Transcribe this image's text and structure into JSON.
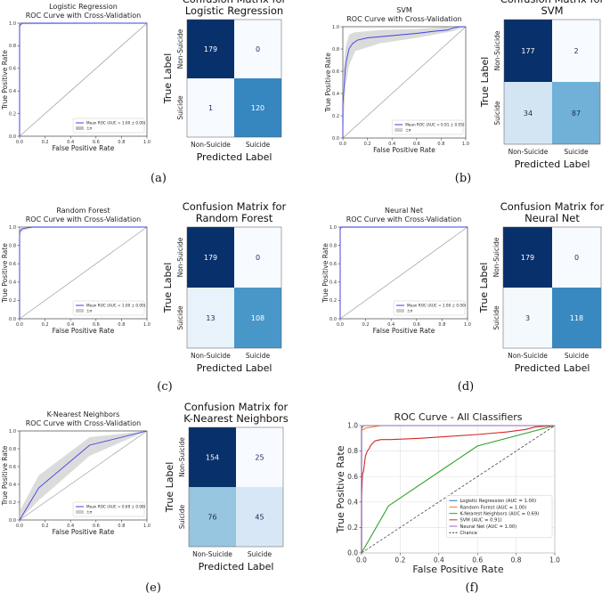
{
  "panel_labels": [
    "(a)",
    "(b)",
    "(c)",
    "(d)",
    "(e)",
    "(f)"
  ],
  "chart_data": [
    {
      "type": "line",
      "id": "roc_lr",
      "title": "Logistic Regression\nROC Curve with Cross-Validation",
      "xlabel": "False Positive Rate",
      "ylabel": "True Positive Rate",
      "xlim": [
        0,
        1
      ],
      "ylim": [
        0,
        1
      ],
      "xticks": [
        "0.0",
        "0.2",
        "0.4",
        "0.6",
        "0.8",
        "1.0"
      ],
      "yticks": [
        "0.0",
        "0.2",
        "0.4",
        "0.6",
        "0.8",
        "1.0"
      ],
      "series": [
        {
          "name": "Mean ROC (AUC = 1.00 ± 0.00)",
          "color": "#4040e0",
          "x": [
            0,
            0.0,
            0.02,
            1.0
          ],
          "y": [
            0,
            0.98,
            1.0,
            1.0
          ]
        }
      ],
      "band": {
        "name": "±σ",
        "color": "#bfbfbf",
        "x": [
          0,
          0.02,
          1.0
        ],
        "lower": [
          0.96,
          0.99,
          1.0
        ],
        "upper": [
          1.0,
          1.0,
          1.0
        ]
      },
      "legend": [
        "Mean ROC (AUC = 1.00 ± 0.00)",
        "±σ"
      ]
    },
    {
      "type": "heatmap",
      "id": "cm_lr",
      "title": "Confusion Matrix for\nLogistic Regression",
      "xlabel": "Predicted Label",
      "ylabel": "True Label",
      "labels": [
        "Non-Suicide",
        "Suicide"
      ],
      "matrix": [
        [
          179,
          0
        ],
        [
          1,
          120
        ]
      ]
    },
    {
      "type": "line",
      "id": "roc_svm",
      "title": "SVM\nROC Curve with Cross-Validation",
      "xlabel": "False Positive Rate",
      "ylabel": "True Positive Rate",
      "xlim": [
        0,
        1
      ],
      "ylim": [
        0,
        1
      ],
      "xticks": [
        "0.0",
        "0.2",
        "0.4",
        "0.6",
        "0.8",
        "1.0"
      ],
      "yticks": [
        "0.0",
        "0.2",
        "0.4",
        "0.6",
        "0.8",
        "1.0"
      ],
      "series": [
        {
          "name": "Mean ROC (AUC = 0.91 ± 0.05)",
          "color": "#4040e0",
          "x": [
            0,
            0.0,
            0.02,
            0.03,
            0.05,
            0.08,
            0.12,
            0.2,
            0.4,
            0.6,
            0.75,
            0.85,
            0.9,
            0.95,
            1.0
          ],
          "y": [
            0,
            0.3,
            0.62,
            0.7,
            0.8,
            0.85,
            0.88,
            0.9,
            0.92,
            0.94,
            0.96,
            0.97,
            0.99,
            1.0,
            1.0
          ]
        }
      ],
      "band": {
        "name": "±σ",
        "color": "#cccccc",
        "x": [
          0,
          0.02,
          0.05,
          0.1,
          0.3,
          0.6,
          0.9,
          1.0
        ],
        "lower": [
          0.0,
          0.45,
          0.65,
          0.78,
          0.85,
          0.9,
          0.96,
          1.0
        ],
        "upper": [
          0.55,
          0.8,
          0.93,
          0.95,
          0.97,
          0.98,
          1.0,
          1.0
        ]
      },
      "legend": [
        "Mean ROC (AUC = 0.91 ± 0.05)",
        "±σ"
      ]
    },
    {
      "type": "heatmap",
      "id": "cm_svm",
      "title": "Confusion Matrix for\nSVM",
      "xlabel": "Predicted Label",
      "ylabel": "True Label",
      "labels": [
        "Non-Suicide",
        "Suicide"
      ],
      "matrix": [
        [
          177,
          2
        ],
        [
          34,
          87
        ]
      ]
    },
    {
      "type": "line",
      "id": "roc_rf",
      "title": "Random Forest\nROC Curve with Cross-Validation",
      "xlabel": "False Positive Rate",
      "ylabel": "True Positive Rate",
      "xlim": [
        0,
        1
      ],
      "ylim": [
        0,
        1
      ],
      "xticks": [
        "0.0",
        "0.2",
        "0.4",
        "0.6",
        "0.8",
        "1.0"
      ],
      "yticks": [
        "0.0",
        "0.2",
        "0.4",
        "0.6",
        "0.8",
        "1.0"
      ],
      "series": [
        {
          "name": "Mean ROC (AUC = 1.00 ± 0.00)",
          "color": "#4040e0",
          "x": [
            0,
            0.0,
            0.02,
            0.05,
            0.1,
            1.0
          ],
          "y": [
            0,
            0.95,
            0.98,
            0.99,
            1.0,
            1.0
          ]
        }
      ],
      "band": {
        "name": "±σ",
        "color": "#cccccc",
        "x": [
          0,
          0.02,
          0.1,
          1.0
        ],
        "lower": [
          0.9,
          0.96,
          0.99,
          1.0
        ],
        "upper": [
          1.0,
          1.0,
          1.0,
          1.0
        ]
      },
      "legend": [
        "Mean ROC (AUC = 1.00 ± 0.00)",
        "±σ"
      ]
    },
    {
      "type": "heatmap",
      "id": "cm_rf",
      "title": "Confusion Matrix for\nRandom Forest",
      "xlabel": "Predicted Label",
      "ylabel": "True Label",
      "labels": [
        "Non-Suicide",
        "Suicide"
      ],
      "matrix": [
        [
          179,
          0
        ],
        [
          13,
          108
        ]
      ]
    },
    {
      "type": "line",
      "id": "roc_nn",
      "title": "Neural Net\nROC Curve with Cross-Validation",
      "xlabel": "False Positive Rate",
      "ylabel": "True Positive Rate",
      "xlim": [
        0,
        1
      ],
      "ylim": [
        0,
        1
      ],
      "xticks": [
        "0.0",
        "0.2",
        "0.4",
        "0.6",
        "0.8",
        "1.0"
      ],
      "yticks": [
        "0.0",
        "0.2",
        "0.4",
        "0.6",
        "0.8",
        "1.0"
      ],
      "series": [
        {
          "name": "Mean ROC (AUC = 1.00 ± 0.00)",
          "color": "#4040e0",
          "x": [
            0,
            0.0,
            0.01,
            1.0
          ],
          "y": [
            0,
            0.98,
            1.0,
            1.0
          ]
        }
      ],
      "band": {
        "name": "±σ",
        "color": "#cccccc",
        "x": [
          0,
          0.01,
          1.0
        ],
        "lower": [
          0.95,
          0.99,
          1.0
        ],
        "upper": [
          1.0,
          1.0,
          1.0
        ]
      },
      "legend": [
        "Mean ROC (AUC = 1.00 ± 0.00)",
        "±σ"
      ]
    },
    {
      "type": "heatmap",
      "id": "cm_nn",
      "title": "Confusion Matrix for\nNeural Net",
      "xlabel": "Predicted Label",
      "ylabel": "True Label",
      "labels": [
        "Non-Suicide",
        "Suicide"
      ],
      "matrix": [
        [
          179,
          0
        ],
        [
          3,
          118
        ]
      ]
    },
    {
      "type": "line",
      "id": "roc_knn",
      "title": "K-Nearest Neighbors\nROC Curve with Cross-Validation",
      "xlabel": "False Positive Rate",
      "ylabel": "True Positive Rate",
      "xlim": [
        0,
        1
      ],
      "ylim": [
        0,
        1
      ],
      "xticks": [
        "0.0",
        "0.2",
        "0.4",
        "0.6",
        "0.8",
        "1.0"
      ],
      "yticks": [
        "0.0",
        "0.2",
        "0.4",
        "0.6",
        "0.8",
        "1.0"
      ],
      "series": [
        {
          "name": "Mean ROC (AUC = 0.69 ± 0.08)",
          "color": "#4040e0",
          "x": [
            0,
            0.15,
            0.55,
            1.0
          ],
          "y": [
            0,
            0.36,
            0.84,
            1.0
          ]
        }
      ],
      "band": {
        "name": "±σ",
        "color": "#cccccc",
        "x": [
          0,
          0.15,
          0.55,
          1.0
        ],
        "lower": [
          0.0,
          0.22,
          0.72,
          1.0
        ],
        "upper": [
          0.1,
          0.5,
          0.93,
          1.0
        ]
      },
      "legend": [
        "Mean ROC (AUC = 0.69 ± 0.08)",
        "±σ"
      ]
    },
    {
      "type": "heatmap",
      "id": "cm_knn",
      "title": "Confusion Matrix for\nK-Nearest Neighbors",
      "xlabel": "Predicted Label",
      "ylabel": "True Label",
      "labels": [
        "Non-Suicide",
        "Suicide"
      ],
      "matrix": [
        [
          154,
          25
        ],
        [
          76,
          45
        ]
      ]
    },
    {
      "type": "line",
      "id": "roc_all",
      "title": "ROC Curve - All Classifiers",
      "xlabel": "False Positive Rate",
      "ylabel": "True Positive Rate",
      "xlim": [
        0,
        1
      ],
      "ylim": [
        0,
        1
      ],
      "xticks": [
        "0.0",
        "0.2",
        "0.4",
        "0.6",
        "0.8",
        "1.0"
      ],
      "yticks": [
        "0.0",
        "0.2",
        "0.4",
        "0.6",
        "0.8",
        "1.0"
      ],
      "grid": true,
      "series": [
        {
          "name": "Logistic Regression (AUC = 1.00)",
          "color": "#1f77b4",
          "x": [
            0,
            0.0,
            0.01,
            1.0
          ],
          "y": [
            0,
            0.98,
            1.0,
            1.0
          ]
        },
        {
          "name": "Random Forest (AUC = 1.00)",
          "color": "#ff7f0e",
          "x": [
            0,
            0.0,
            0.02,
            0.1,
            1.0
          ],
          "y": [
            0,
            0.96,
            0.98,
            1.0,
            1.0
          ]
        },
        {
          "name": "K-Nearest Neighbors (AUC = 0.69)",
          "color": "#2ca02c",
          "x": [
            0,
            0.14,
            0.6,
            1.0
          ],
          "y": [
            0,
            0.37,
            0.84,
            1.0
          ]
        },
        {
          "name": "SVM (AUC = 0.91)",
          "color": "#d62728",
          "x": [
            0,
            0.0,
            0.005,
            0.01,
            0.015,
            0.02,
            0.03,
            0.04,
            0.05,
            0.07,
            0.1,
            0.15,
            0.3,
            0.5,
            0.6,
            0.75,
            0.85,
            0.9,
            1.0
          ],
          "y": [
            0,
            0.44,
            0.62,
            0.64,
            0.7,
            0.76,
            0.8,
            0.82,
            0.85,
            0.88,
            0.89,
            0.89,
            0.9,
            0.92,
            0.93,
            0.95,
            0.97,
            0.99,
            1.0
          ]
        },
        {
          "name": "Neural Net (AUC = 1.00)",
          "color": "#9467bd",
          "x": [
            0,
            0.0,
            0.01,
            1.0
          ],
          "y": [
            0,
            0.99,
            1.0,
            1.0
          ]
        }
      ],
      "chance": {
        "name": "Chance",
        "color": "#333333"
      },
      "legend": [
        "Logistic Regression (AUC = 1.00)",
        "Random Forest (AUC = 1.00)",
        "K-Nearest Neighbors (AUC = 0.69)",
        "SVM (AUC = 0.91)",
        "Neural Net (AUC = 1.00)",
        "Chance"
      ]
    }
  ]
}
